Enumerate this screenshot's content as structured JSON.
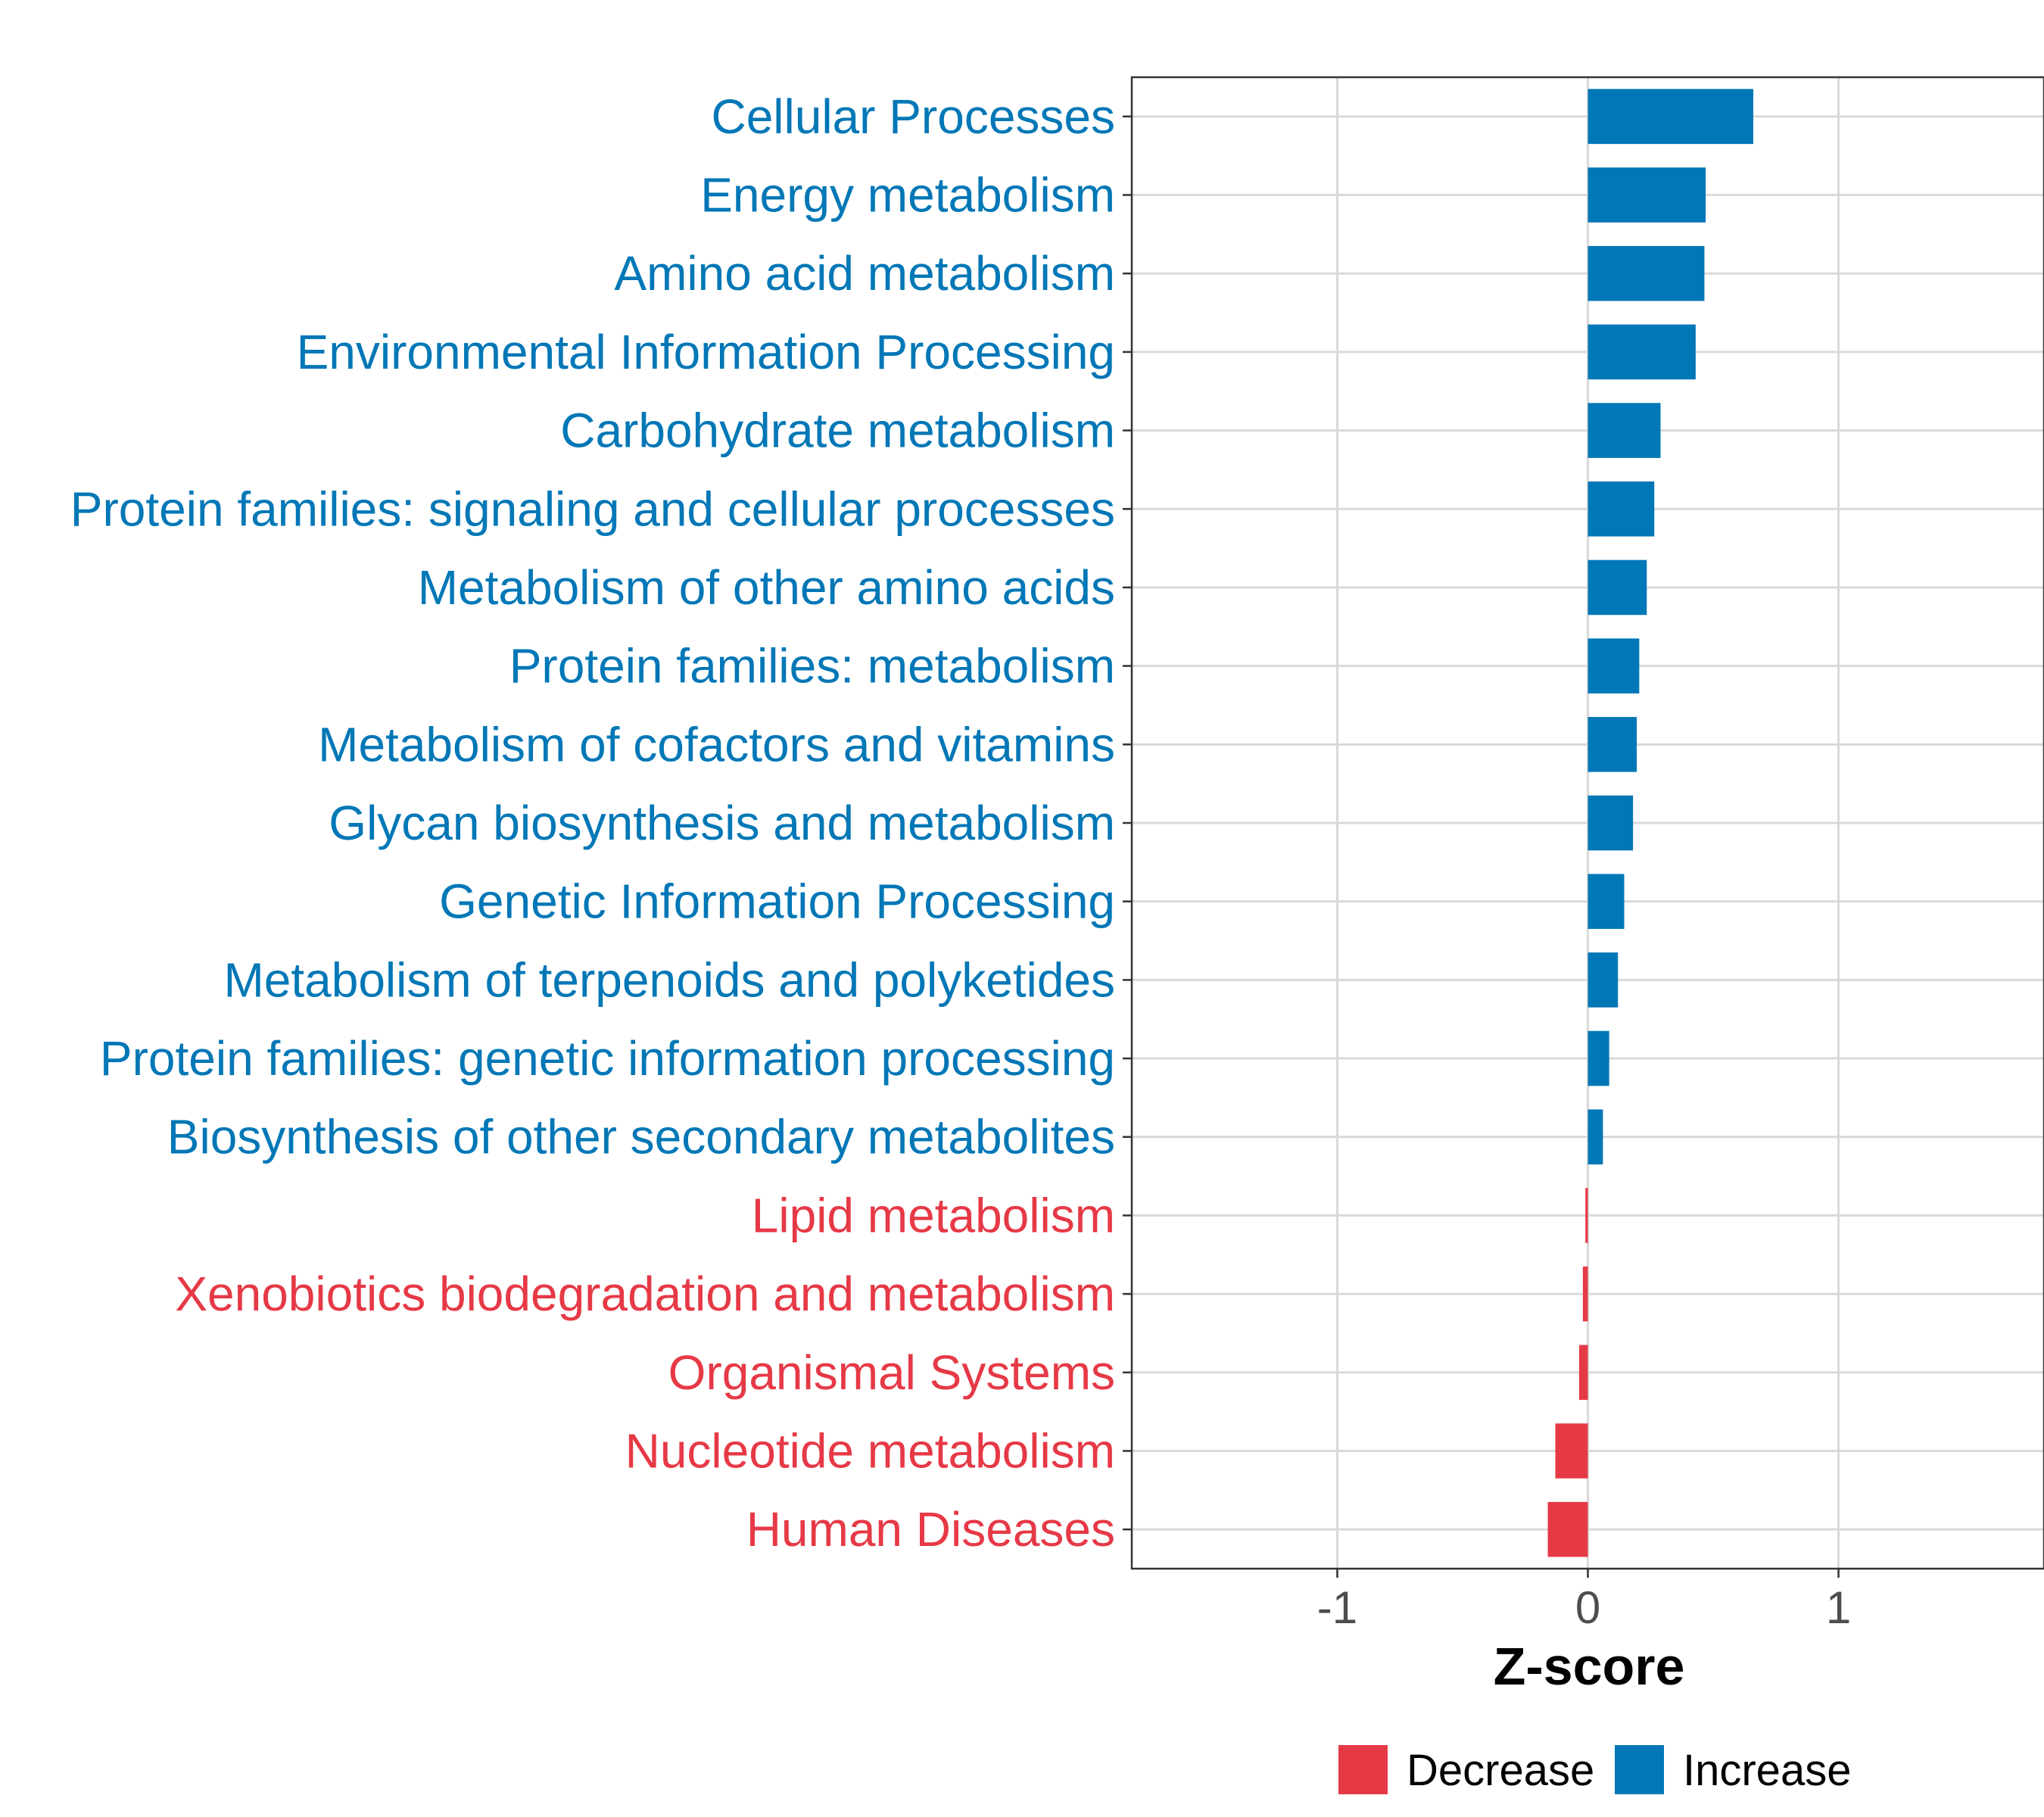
{
  "chart_data": {
    "type": "bar",
    "orientation": "horizontal",
    "title": "",
    "xlabel": "Z-score",
    "ylabel": "",
    "xlim": [
      -1.82,
      1.82
    ],
    "xticks": [
      {
        "value": -1,
        "label": "-1"
      },
      {
        "value": 0,
        "label": "0"
      },
      {
        "value": 1,
        "label": "1"
      }
    ],
    "grid": true,
    "categories": [
      "Cellular Processes",
      "Energy metabolism",
      "Amino acid metabolism",
      "Environmental Information Processing",
      "Carbohydrate metabolism",
      "Protein families: signaling and cellular processes",
      "Metabolism of other amino acids",
      "Protein families: metabolism",
      "Metabolism of cofactors and vitamins",
      "Glycan biosynthesis and metabolism",
      "Genetic Information Processing",
      "Metabolism of terpenoids and polyketides",
      "Protein families: genetic information processing",
      "Biosynthesis of other secondary metabolites",
      "Lipid metabolism",
      "Xenobiotics biodegradation and metabolism",
      "Organismal Systems",
      "Nucleotide metabolism",
      "Human Diseases"
    ],
    "values": [
      0.66,
      0.47,
      0.465,
      0.43,
      0.29,
      0.265,
      0.235,
      0.205,
      0.195,
      0.18,
      0.145,
      0.12,
      0.085,
      0.06,
      -0.01,
      -0.02,
      -0.035,
      -0.13,
      -0.16
    ],
    "groups": [
      "Increase",
      "Increase",
      "Increase",
      "Increase",
      "Increase",
      "Increase",
      "Increase",
      "Increase",
      "Increase",
      "Increase",
      "Increase",
      "Increase",
      "Increase",
      "Increase",
      "Decrease",
      "Decrease",
      "Decrease",
      "Decrease",
      "Decrease"
    ],
    "legend": {
      "position": "bottom",
      "entries": [
        {
          "name": "Decrease",
          "color": "#e63946"
        },
        {
          "name": "Increase",
          "color": "#0077b6"
        }
      ]
    }
  }
}
